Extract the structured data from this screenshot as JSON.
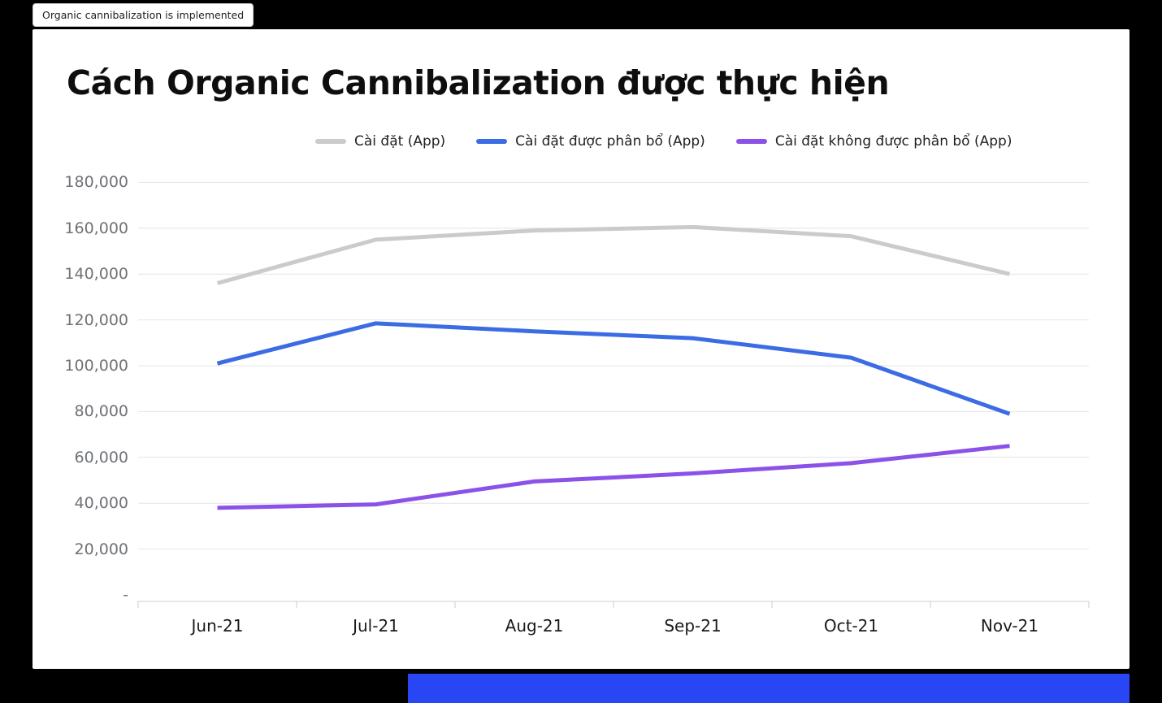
{
  "tooltip_chip": {
    "text": "Organic cannibalization is implemented"
  },
  "card": {
    "title": "Cách Organic Cannibalization được thực hiện"
  },
  "chart_data": {
    "type": "line",
    "title": "Cách Organic Cannibalization được thực hiện",
    "categories": [
      "Jun-21",
      "Jul-21",
      "Aug-21",
      "Sep-21",
      "Oct-21",
      "Nov-21"
    ],
    "series": [
      {
        "name": "Cài đặt (App)",
        "color": "#cbcbcb",
        "values": [
          136000,
          155000,
          159000,
          160500,
          156500,
          140000
        ]
      },
      {
        "name": "Cài đặt được phân bổ (App)",
        "color": "#3c6ce4",
        "values": [
          101000,
          118500,
          115000,
          112000,
          103500,
          79000
        ]
      },
      {
        "name": "Cài đặt không được phân bổ  (App)",
        "color": "#8c52e8",
        "values": [
          38000,
          39500,
          49500,
          53000,
          57500,
          65000
        ]
      }
    ],
    "y_ticks": [
      {
        "value": 180000,
        "label": "180,000"
      },
      {
        "value": 160000,
        "label": "160,000"
      },
      {
        "value": 140000,
        "label": "140,000"
      },
      {
        "value": 120000,
        "label": "120,000"
      },
      {
        "value": 100000,
        "label": "100,000"
      },
      {
        "value": 80000,
        "label": "80,000"
      },
      {
        "value": 60000,
        "label": "60,000"
      },
      {
        "value": 40000,
        "label": "40,000"
      },
      {
        "value": 20000,
        "label": "20,000"
      },
      {
        "value": 0,
        "label": "-"
      }
    ],
    "ylim": [
      0,
      182000
    ],
    "grid": true,
    "legend_position": "top"
  },
  "colors": {
    "grid_line": "#e4e4e4",
    "axis_line": "#cfcfcf",
    "bottom_bar": "#2946f5"
  }
}
